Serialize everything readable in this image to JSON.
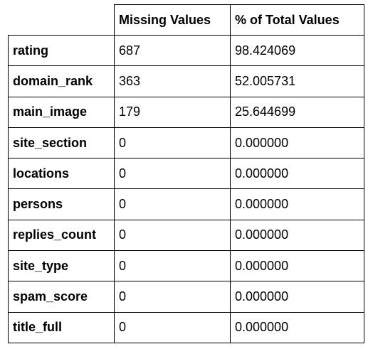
{
  "table": {
    "columns": [
      "",
      "Missing Values",
      "% of Total Values"
    ],
    "rows": [
      {
        "index": "rating",
        "missing": "687",
        "percent": "98.424069"
      },
      {
        "index": "domain_rank",
        "missing": "363",
        "percent": "52.005731"
      },
      {
        "index": "main_image",
        "missing": "179",
        "percent": "25.644699"
      },
      {
        "index": "site_section",
        "missing": "0",
        "percent": "0.000000"
      },
      {
        "index": "locations",
        "missing": "0",
        "percent": "0.000000"
      },
      {
        "index": "persons",
        "missing": "0",
        "percent": "0.000000"
      },
      {
        "index": "replies_count",
        "missing": "0",
        "percent": "0.000000"
      },
      {
        "index": "site_type",
        "missing": "0",
        "percent": "0.000000"
      },
      {
        "index": "spam_score",
        "missing": "0",
        "percent": "0.000000"
      },
      {
        "index": "title_full",
        "missing": "0",
        "percent": "0.000000"
      }
    ]
  }
}
